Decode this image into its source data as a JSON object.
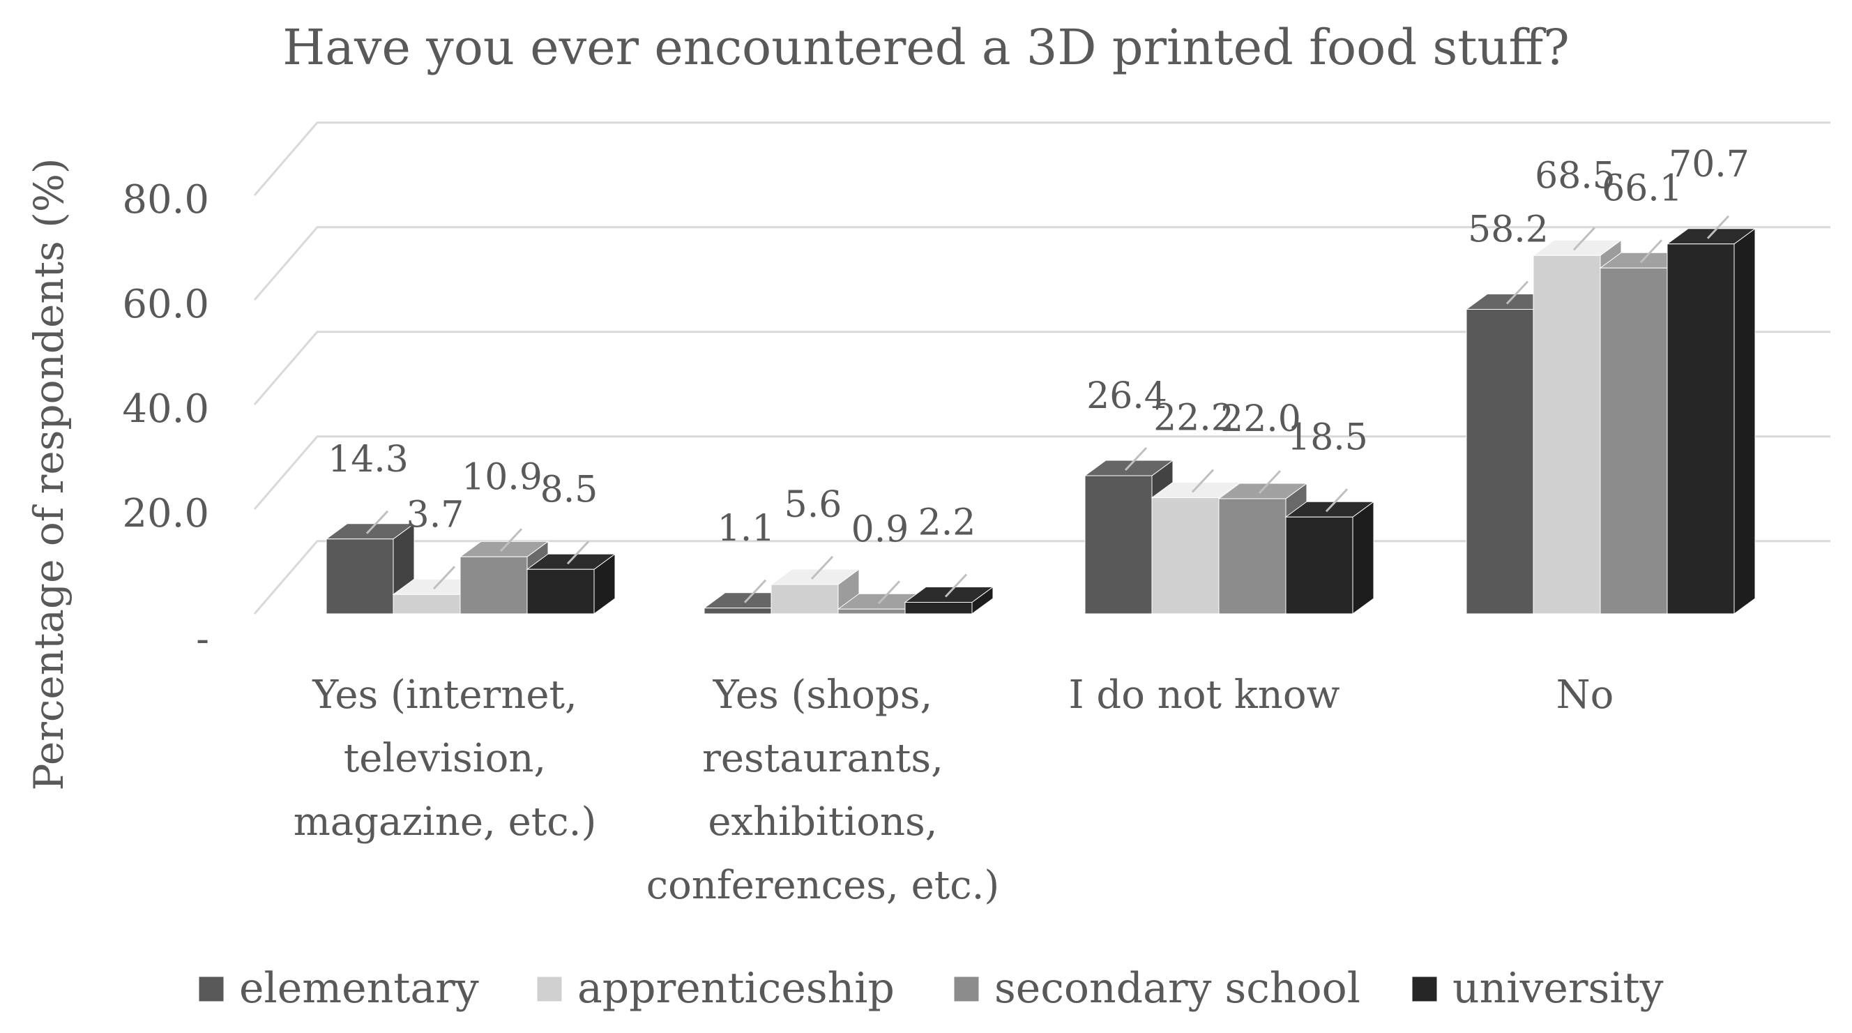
{
  "chart_data": {
    "type": "bar",
    "title": "Have you ever encountered a 3D printed food stuff?",
    "xlabel": "",
    "ylabel": "Percentage of respondents (%)",
    "ylim": [
      0,
      80
    ],
    "yticks": [
      0,
      20,
      40,
      60,
      80
    ],
    "ytick_labels": [
      "-",
      "20.0",
      "40.0",
      "60.0",
      "80.0"
    ],
    "grid": true,
    "legend_position": "bottom",
    "categories": [
      [
        "Yes (internet,",
        "television,",
        "magazine, etc.)"
      ],
      [
        "Yes (shops,",
        "restaurants,",
        "exhibitions,",
        "conferences, etc.)"
      ],
      [
        "I do not know"
      ],
      [
        "No"
      ]
    ],
    "series": [
      {
        "name": "elementary",
        "color": "#595959",
        "values": [
          14.3,
          1.1,
          26.4,
          58.2
        ]
      },
      {
        "name": "apprenticeship",
        "color": "#d0d0d0",
        "values": [
          3.7,
          5.6,
          22.2,
          68.5
        ]
      },
      {
        "name": "secondary school",
        "color": "#8c8c8c",
        "values": [
          10.9,
          0.9,
          22.0,
          66.1
        ]
      },
      {
        "name": "university",
        "color": "#262626",
        "values": [
          8.5,
          2.2,
          18.5,
          70.7
        ]
      }
    ],
    "data_labels": [
      [
        "14.3",
        "1.1",
        "26.4",
        "58.2"
      ],
      [
        "3.7",
        "5.6",
        "22.2",
        "68.5"
      ],
      [
        "10.9",
        "0.9",
        "22.0",
        "66.1"
      ],
      [
        "8.5",
        "2.2",
        "18.5",
        "70.7"
      ]
    ]
  }
}
